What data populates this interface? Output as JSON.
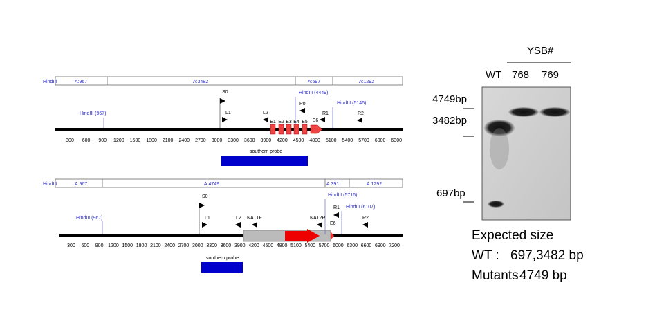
{
  "wt_map": {
    "fragment_label": "HindIII",
    "fragments": [
      "A:967",
      "A:3482",
      "A:697",
      "A:1292"
    ],
    "sites": [
      "HindIII (967)",
      "HindIII (4449)",
      "HindIII (5146)"
    ],
    "primers": [
      "S0",
      "L1",
      "L2",
      "P0",
      "R1",
      "R2"
    ],
    "exons": [
      "E1",
      "E2",
      "E3",
      "E4",
      "E5",
      "E6"
    ],
    "scale": [
      300,
      600,
      900,
      1200,
      1500,
      1800,
      2100,
      2400,
      2700,
      3000,
      3300,
      3600,
      3900,
      4200,
      4500,
      4800,
      5100,
      5400,
      5700,
      6000,
      6300
    ],
    "probe": "southern probe"
  },
  "mutant_map": {
    "fragment_label": "HindIII",
    "fragments": [
      "A:967",
      "A:4749",
      "A:391",
      "A:1292"
    ],
    "sites": [
      "HindIII (967)",
      "HindIII (5716)",
      "HindIII (6107)"
    ],
    "primers": [
      "S0",
      "L1",
      "L2",
      "NAT1F",
      "NAT2R",
      "R1",
      "E6",
      "R2"
    ],
    "scale": [
      300,
      600,
      900,
      1200,
      1500,
      1800,
      2100,
      2400,
      2700,
      3000,
      3300,
      3600,
      3900,
      4200,
      4500,
      4800,
      5100,
      5400,
      5700,
      6000,
      6300,
      6600,
      6900,
      7200
    ],
    "probe": "southern probe"
  },
  "blot": {
    "group": "YSB#",
    "lanes": [
      "WT",
      "768",
      "769"
    ],
    "markers": [
      "4749bp",
      "3482bp",
      "697bp"
    ]
  },
  "expected": {
    "title": "Expected size",
    "rows": [
      [
        "WT :",
        "697,3482 bp"
      ],
      [
        "Mutants :",
        "4749 bp"
      ]
    ]
  }
}
